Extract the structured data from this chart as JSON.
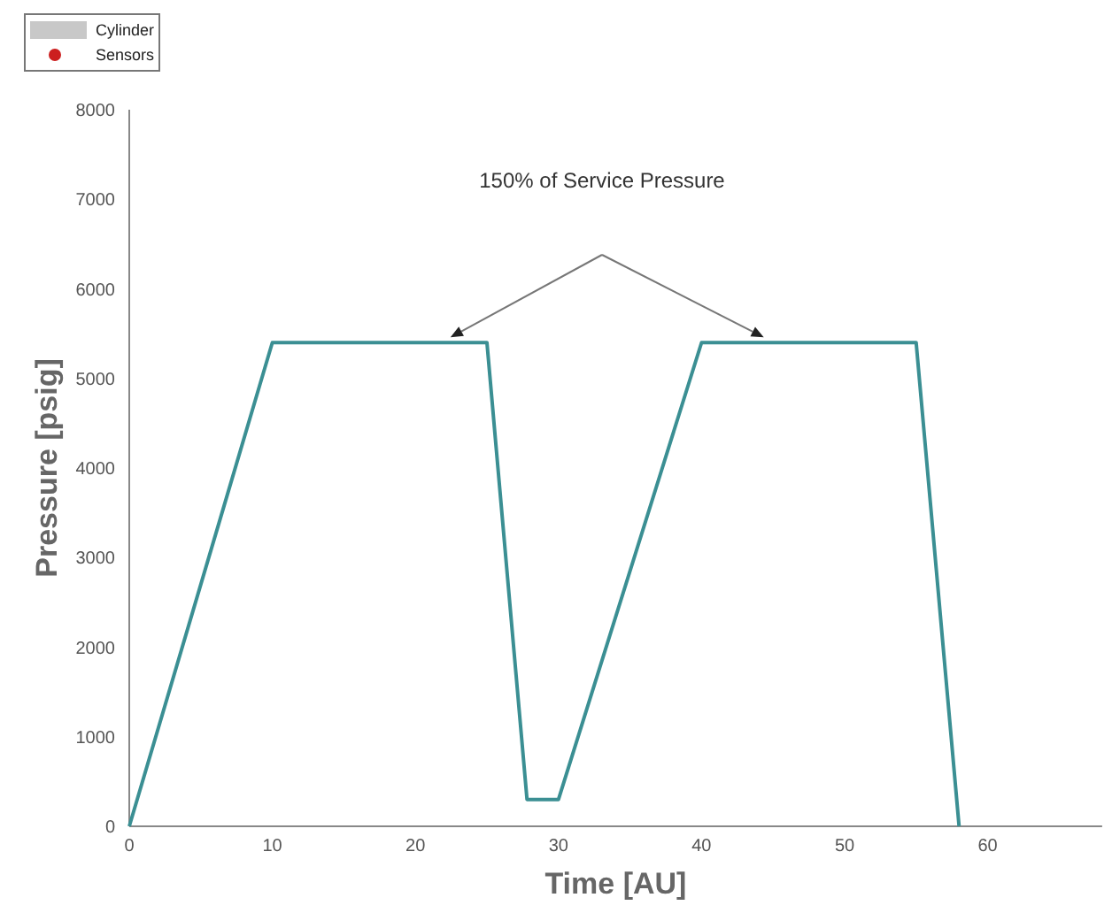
{
  "chart_data": {
    "type": "line",
    "xlabel": "Time [AU]",
    "ylabel": "Pressure [psig]",
    "annotations": [
      "150% of Service Pressure"
    ],
    "xlim": [
      0,
      68
    ],
    "xticks": [
      0,
      10,
      20,
      30,
      40,
      50,
      60
    ],
    "ylim": [
      0,
      8000
    ],
    "yticks": [
      0,
      1000,
      2000,
      3000,
      4000,
      5000,
      6000,
      7000,
      8000
    ],
    "grid": false,
    "legend": "top left",
    "marker": "none",
    "line_style": "solid",
    "series": [
      {
        "color": "#3b8f93",
        "x": [
          0,
          10,
          25,
          27.8,
          30,
          40,
          55,
          58
        ],
        "values": [
          0,
          5400,
          5400,
          300,
          300,
          5400,
          5400,
          0
        ]
      },
      {
        "name": "Cylinder",
        "type": "area",
        "color": "#c8c8c8"
      },
      {
        "name": "Sensors",
        "type": "scatter",
        "marker": "circle",
        "color": "#cc1f1f"
      }
    ]
  }
}
